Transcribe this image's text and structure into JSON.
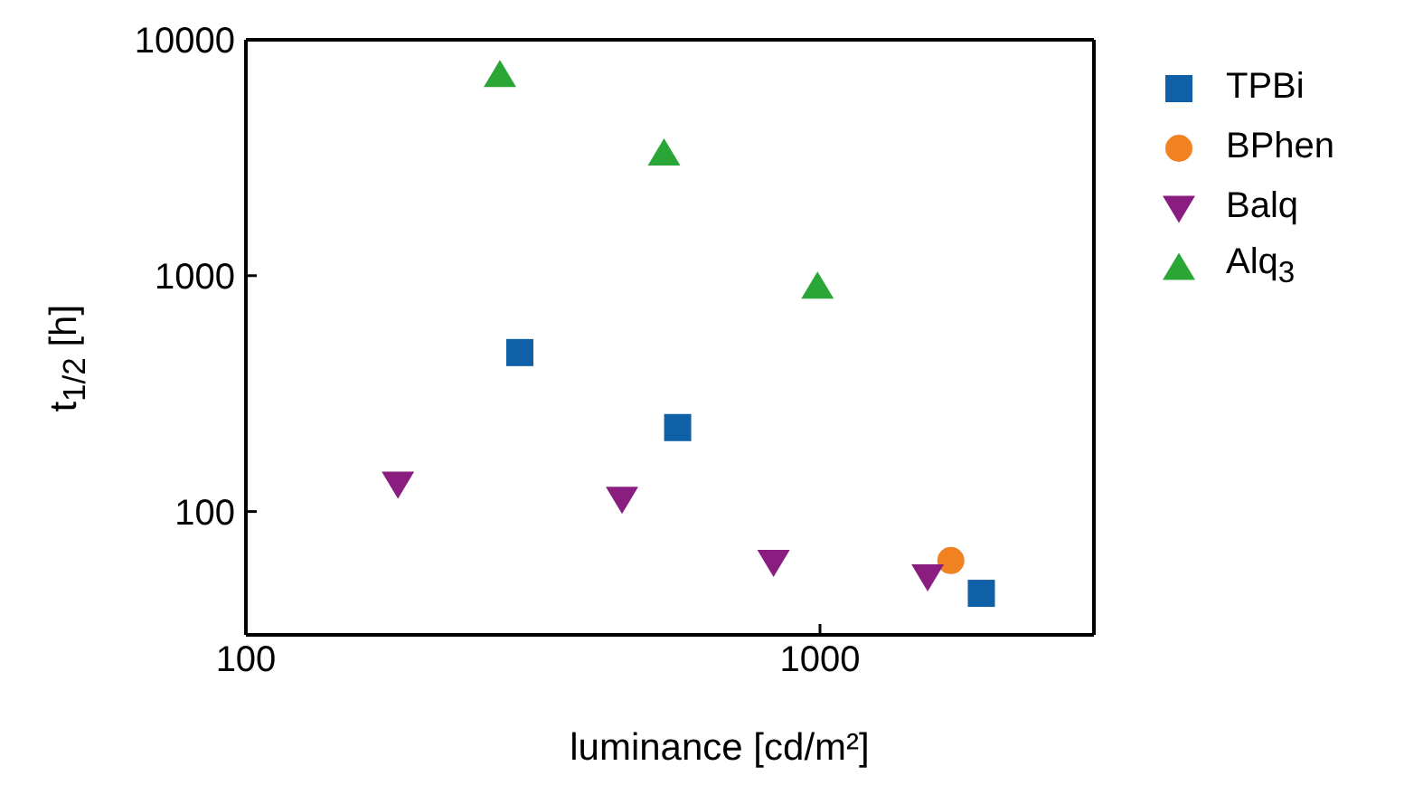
{
  "chart_data": {
    "type": "scatter",
    "xlabel": "luminance [cd/m²]",
    "ylabel": "t$_{1/2}$ [h]",
    "log": "xy",
    "xlim": [
      100,
      3000
    ],
    "xticks": [
      100,
      1000
    ],
    "ylim": [
      30,
      10000
    ],
    "yticks": [
      100,
      1000,
      10000
    ],
    "legend": "right",
    "series": [
      {
        "name": "TPBi",
        "color": "#1060a8",
        "marker": "square",
        "x": [
          300,
          565,
          1910
        ],
        "values": [
          472,
          227,
          45
        ]
      },
      {
        "name": "BPhen",
        "color": "#f08222",
        "marker": "circle",
        "x": [
          1690
        ],
        "values": [
          62
        ]
      },
      {
        "name": "Balq",
        "color": "#8a1e80",
        "marker": "triangle-down",
        "x": [
          184,
          452,
          830,
          1540
        ],
        "values": [
          131,
          113,
          61,
          53
        ]
      },
      {
        "name": "Alq$_{3}$",
        "color": "#2aa636",
        "marker": "triangle",
        "x": [
          277,
          535,
          990
        ],
        "values": [
          7110,
          3300,
          900
        ]
      }
    ]
  }
}
